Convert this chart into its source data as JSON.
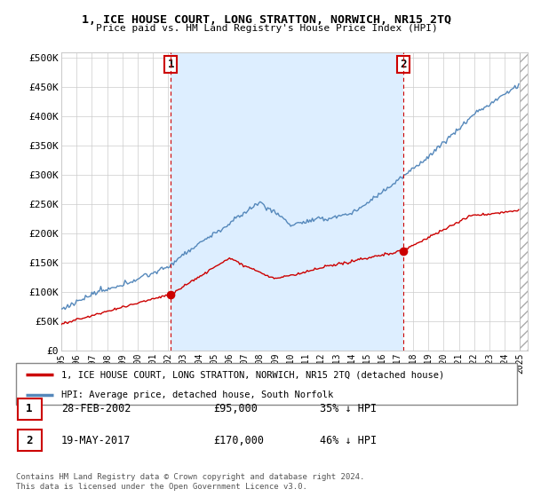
{
  "title": "1, ICE HOUSE COURT, LONG STRATTON, NORWICH, NR15 2TQ",
  "subtitle": "Price paid vs. HM Land Registry's House Price Index (HPI)",
  "ylabel_ticks": [
    "£0",
    "£50K",
    "£100K",
    "£150K",
    "£200K",
    "£250K",
    "£300K",
    "£350K",
    "£400K",
    "£450K",
    "£500K"
  ],
  "ytick_values": [
    0,
    50000,
    100000,
    150000,
    200000,
    250000,
    300000,
    350000,
    400000,
    450000,
    500000
  ],
  "ylim": [
    0,
    510000
  ],
  "xlim_start": 1995.0,
  "xlim_end": 2025.5,
  "purchase1_date": 2002.16,
  "purchase1_price": 95000,
  "purchase1_label": "1",
  "purchase2_date": 2017.38,
  "purchase2_price": 170000,
  "purchase2_label": "2",
  "red_line_color": "#cc0000",
  "blue_line_color": "#5588bb",
  "fill_color": "#ddeeff",
  "annotation_box_color": "#cc0000",
  "grid_color": "#cccccc",
  "background_color": "#ffffff",
  "legend_label_red": "1, ICE HOUSE COURT, LONG STRATTON, NORWICH, NR15 2TQ (detached house)",
  "legend_label_blue": "HPI: Average price, detached house, South Norfolk",
  "table_row1": [
    "1",
    "28-FEB-2002",
    "£95,000",
    "35% ↓ HPI"
  ],
  "table_row2": [
    "2",
    "19-MAY-2017",
    "£170,000",
    "46% ↓ HPI"
  ],
  "footer": "Contains HM Land Registry data © Crown copyright and database right 2024.\nThis data is licensed under the Open Government Licence v3.0."
}
